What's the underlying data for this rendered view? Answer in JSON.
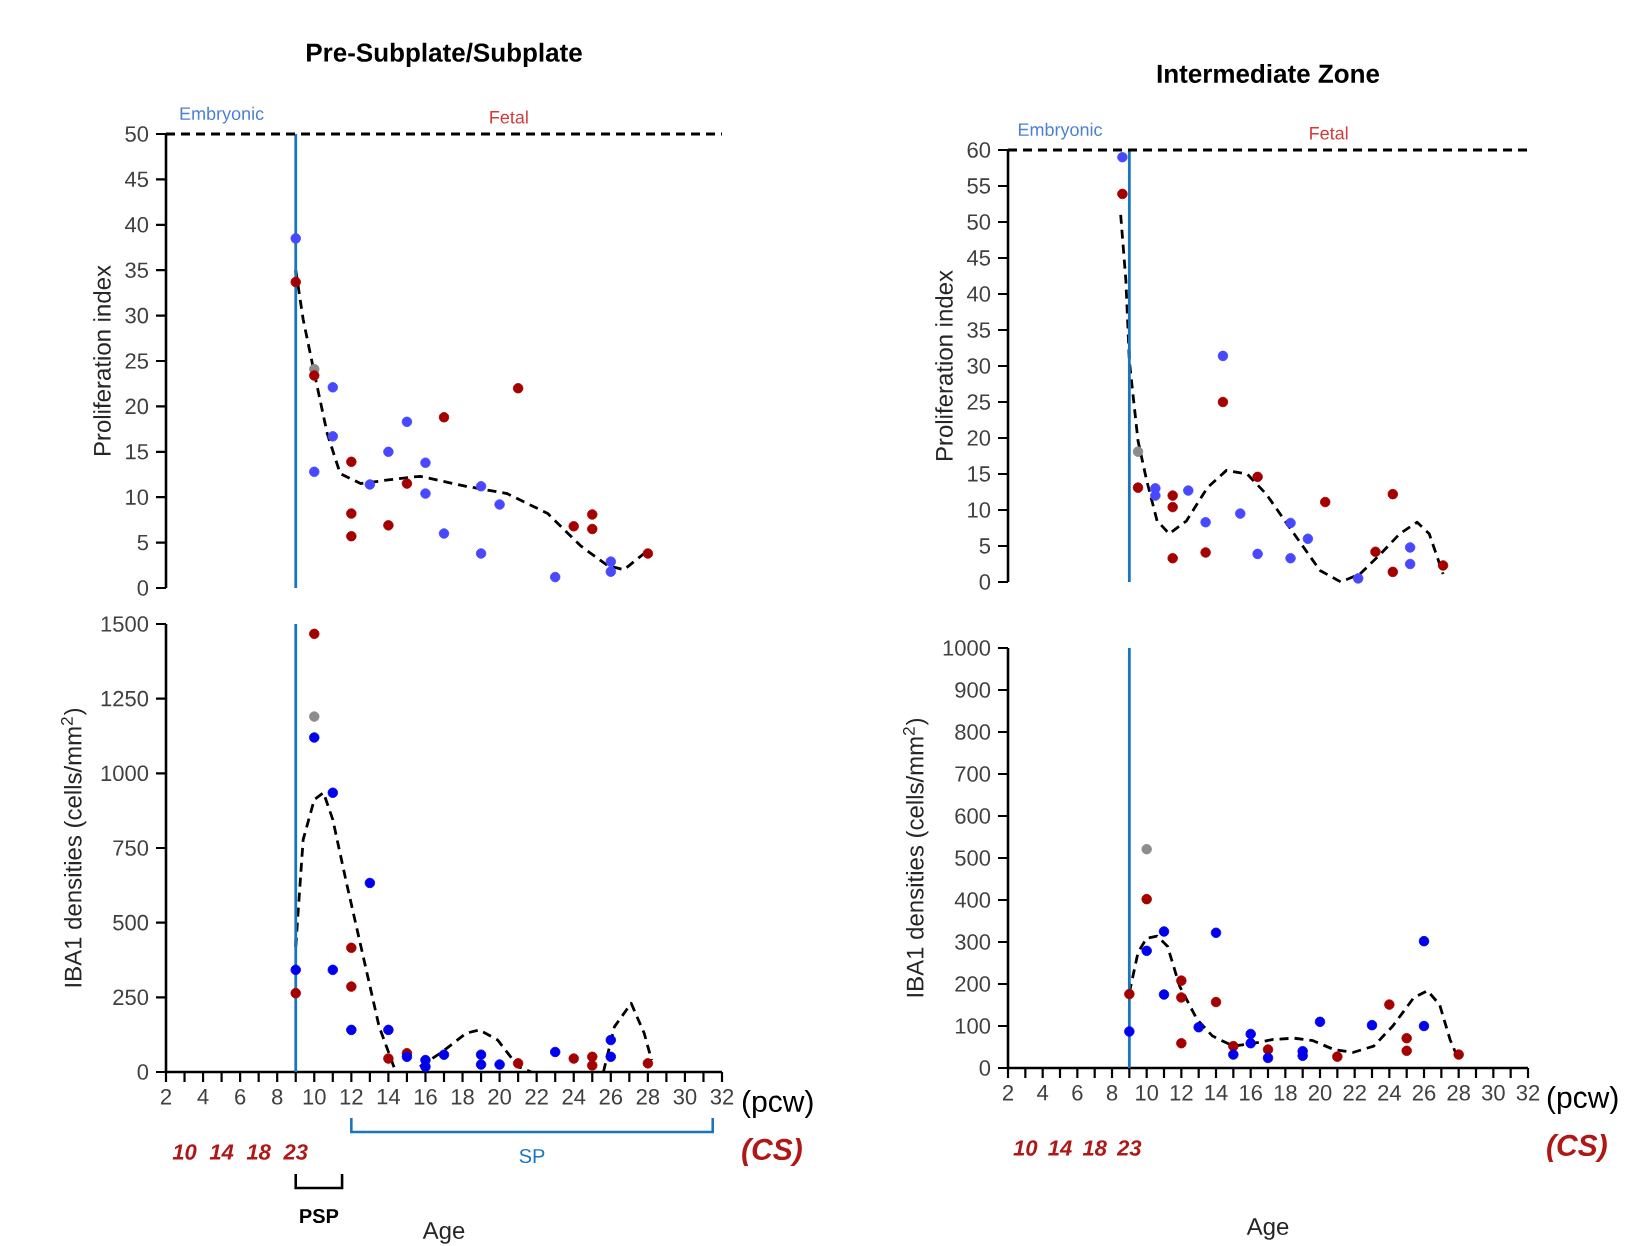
{
  "chart_data": [
    {
      "type": "scatter",
      "title": "Pre-Subplate/Subplate",
      "ylabel": "Proliferation index",
      "xlim": [
        2,
        32
      ],
      "ylim": [
        0,
        50
      ],
      "yticks": [
        0,
        5,
        10,
        15,
        20,
        25,
        30,
        35,
        40,
        45,
        50
      ],
      "tick_labels": "y",
      "marker": "circle",
      "ref_lines": [
        {
          "axis": "x",
          "value": 9,
          "color": "#1a75c0"
        },
        {
          "axis": "y",
          "value": 50,
          "color": "#000000",
          "line_style": "dashed"
        }
      ],
      "annotations": [
        "Embryonic",
        "Fetal"
      ],
      "series": [
        {
          "color": "#8c8c8c",
          "x": [
            10
          ],
          "values": [
            24.1
          ]
        },
        {
          "color": "#a50000",
          "x": [
            9,
            10,
            12,
            12,
            12,
            14,
            15,
            17,
            21,
            24,
            25,
            25,
            28
          ],
          "values": [
            33.7,
            23.4,
            13.9,
            8.2,
            5.7,
            6.9,
            11.5,
            18.8,
            22.0,
            6.8,
            8.1,
            6.5,
            3.8
          ]
        },
        {
          "color": "#4848ff",
          "x": [
            9,
            10,
            11,
            11,
            13,
            14,
            15,
            16,
            16,
            17,
            19,
            19,
            20,
            23,
            26,
            26
          ],
          "values": [
            38.5,
            12.8,
            22.1,
            16.7,
            11.4,
            15,
            18.3,
            13.8,
            10.4,
            6.0,
            11.2,
            3.8,
            9.2,
            1.2,
            2.9,
            1.8
          ]
        },
        {
          "type": "line",
          "color": "#000000",
          "marker": "none",
          "line_style": "dashed",
          "x": [
            9,
            9.4,
            10,
            10.7,
            11.4,
            12.5,
            14,
            15.7,
            18.2,
            20.4,
            22.6,
            24.4,
            25.8,
            26.7,
            27.8
          ],
          "values": [
            35,
            29.6,
            23.7,
            17,
            12.6,
            11.5,
            11.9,
            12.3,
            11.2,
            10.4,
            8.2,
            4.6,
            2.5,
            2.0,
            3.8
          ]
        }
      ]
    },
    {
      "type": "scatter",
      "xlabel": "Age",
      "ylabel": "IBA1 densities (cells/mm$^{2}$)",
      "xlim": [
        2,
        32
      ],
      "ylim": [
        0,
        1500
      ],
      "yticks": [
        0,
        250,
        500,
        750,
        1000,
        1250,
        1500
      ],
      "marker": "circle",
      "xticks": [
        2,
        {
          "value": 3,
          "label": null
        },
        4,
        {
          "value": 5,
          "label": null
        },
        6,
        {
          "value": 7,
          "label": null
        },
        8,
        {
          "value": 9,
          "label": null
        },
        10,
        {
          "value": 11,
          "label": null
        },
        12,
        {
          "value": 13,
          "label": null
        },
        14,
        {
          "value": 15,
          "label": null
        },
        16,
        {
          "value": 17,
          "label": null
        },
        18,
        {
          "value": 19,
          "label": null
        },
        20,
        {
          "value": 21,
          "label": null
        },
        22,
        {
          "value": 23,
          "label": null
        },
        24,
        {
          "value": 25,
          "label": null
        },
        26,
        {
          "value": 27,
          "label": null
        },
        28,
        {
          "value": 29,
          "label": null
        },
        30,
        {
          "value": 31,
          "label": null
        },
        32
      ],
      "ref_lines": [
        {
          "axis": "x",
          "value": 9,
          "color": "#1a75c0"
        }
      ],
      "annotations": [
        "10",
        "14",
        "18",
        "23",
        "(pcw)",
        "(CS)",
        "PSP",
        "SP"
      ],
      "series": [
        {
          "color": "#8c8c8c",
          "x": [
            10
          ],
          "values": [
            1190
          ]
        },
        {
          "color": "#a50000",
          "x": [
            9,
            10,
            12,
            12,
            14,
            15,
            21,
            24,
            25,
            25,
            28
          ],
          "values": [
            264,
            1467,
            416,
            286,
            45,
            63,
            29,
            45,
            51,
            22,
            29
          ]
        },
        {
          "color": "#0000ee",
          "x": [
            9,
            10,
            11,
            11,
            12,
            13,
            14,
            15,
            16,
            16,
            17,
            19,
            19,
            20,
            23,
            26,
            26
          ],
          "values": [
            342,
            1120,
            935,
            342,
            141,
            633,
            141,
            51,
            40,
            18,
            58,
            58,
            25,
            25,
            67,
            107,
            51
          ]
        },
        {
          "type": "line",
          "color": "#000000",
          "marker": "none",
          "line_style": "dashed",
          "x": [
            9,
            9.4,
            10,
            10.5,
            11,
            11.7,
            12.6,
            13.5,
            14.4,
            15.0,
            15.7,
            16.8,
            18.2,
            18.9,
            19.9,
            21,
            21.7,
            23.5,
            25.6,
            26.2,
            27.1,
            27.8,
            28.2
          ],
          "values": [
            420,
            778,
            912,
            935,
            845,
            644,
            398,
            152,
            0,
            null,
            18,
            63,
            130,
            141,
            107,
            18,
            0,
            null,
            0,
            152,
            230,
            130,
            40
          ]
        }
      ]
    },
    {
      "type": "scatter",
      "title": "Intermediate Zone",
      "ylabel": "Proliferation index",
      "xlim": [
        2,
        32
      ],
      "ylim": [
        0,
        60
      ],
      "yticks": [
        0,
        5,
        10,
        15,
        20,
        25,
        30,
        35,
        40,
        45,
        50,
        55,
        60
      ],
      "tick_labels": "y",
      "marker": "circle",
      "ref_lines": [
        {
          "axis": "x",
          "value": 9,
          "color": "#1a75c0"
        },
        {
          "axis": "y",
          "value": 60,
          "color": "#000000",
          "line_style": "dashed"
        }
      ],
      "annotations": [
        "Embryonic",
        "Fetal"
      ],
      "series": [
        {
          "color": "#8c8c8c",
          "x": [
            9.5
          ],
          "values": [
            18.1
          ]
        },
        {
          "color": "#a50000",
          "x": [
            8.6,
            9.5,
            11.5,
            11.5,
            11.5,
            13.4,
            14.4,
            16.4,
            20.3,
            23.2,
            24.2,
            24.2,
            27.1
          ],
          "values": [
            53.9,
            13.1,
            12.0,
            10.4,
            3.3,
            4.1,
            25,
            14.6,
            11.1,
            4.2,
            12.2,
            1.4,
            2.3
          ]
        },
        {
          "color": "#4848ff",
          "x": [
            8.6,
            10.5,
            10.5,
            12.4,
            13.4,
            14.4,
            15.4,
            16.4,
            18.3,
            18.3,
            19.3,
            22.2,
            25.2,
            25.2
          ],
          "values": [
            59.0,
            13.0,
            12.0,
            12.7,
            8.3,
            31.4,
            9.5,
            3.9,
            8.2,
            3.3,
            6.0,
            0.5,
            4.8,
            2.5
          ]
        },
        {
          "type": "line",
          "color": "#000000",
          "marker": "none",
          "line_style": "dashed",
          "x": [
            8.5,
            8.8,
            9.0,
            9.5,
            10,
            10.6,
            11.3,
            12.3,
            13.5,
            14.6,
            15.8,
            16.9,
            18.5,
            20,
            21.2,
            22.3,
            23.5,
            24.6,
            25.6,
            26.3,
            27.1
          ],
          "values": [
            51,
            41.9,
            30.7,
            19.6,
            14.1,
            8.5,
            6.7,
            8.5,
            13.1,
            15.5,
            15,
            12.2,
            6.7,
            1.6,
            0,
            1.1,
            3.9,
            6.7,
            8.3,
            6.7,
            1.1
          ]
        }
      ]
    },
    {
      "type": "scatter",
      "xlabel": "Age",
      "ylabel": "IBA1 densities (cells/mm$^{2}$)",
      "xlim": [
        2,
        32
      ],
      "ylim": [
        0,
        1000
      ],
      "yticks": [
        0,
        100,
        200,
        300,
        400,
        500,
        600,
        700,
        800,
        900,
        1000
      ],
      "marker": "circle",
      "xticks": [
        2,
        {
          "value": 3,
          "label": null
        },
        4,
        {
          "value": 5,
          "label": null
        },
        6,
        {
          "value": 7,
          "label": null
        },
        8,
        {
          "value": 9,
          "label": null
        },
        10,
        {
          "value": 11,
          "label": null
        },
        12,
        {
          "value": 13,
          "label": null
        },
        14,
        {
          "value": 15,
          "label": null
        },
        16,
        {
          "value": 17,
          "label": null
        },
        18,
        {
          "value": 19,
          "label": null
        },
        20,
        {
          "value": 21,
          "label": null
        },
        22,
        {
          "value": 23,
          "label": null
        },
        24,
        {
          "value": 25,
          "label": null
        },
        26,
        {
          "value": 27,
          "label": null
        },
        28,
        {
          "value": 29,
          "label": null
        },
        30,
        {
          "value": 31,
          "label": null
        },
        32
      ],
      "ref_lines": [
        {
          "axis": "x",
          "value": 9,
          "color": "#1a75c0"
        }
      ],
      "annotations": [
        "10",
        "14",
        "18",
        "23",
        "(pcw)",
        "(CS)"
      ],
      "series": [
        {
          "color": "#8c8c8c",
          "x": [
            10
          ],
          "values": [
            521
          ]
        },
        {
          "color": "#a50000",
          "x": [
            9,
            10,
            12,
            12,
            12,
            14,
            15,
            17,
            21,
            24,
            25,
            25,
            28
          ],
          "values": [
            176,
            402,
            208,
            168,
            59,
            157,
            52,
            44,
            27,
            151,
            71,
            41,
            32
          ]
        },
        {
          "color": "#0000ee",
          "x": [
            9,
            10,
            11,
            11,
            13,
            14,
            15,
            16,
            16,
            17,
            19,
            19,
            20,
            23,
            26,
            26
          ],
          "values": [
            87,
            279,
            325,
            175,
            97,
            322,
            32,
            81,
            59,
            24,
            40,
            29,
            110,
            102,
            302,
            100
          ]
        },
        {
          "type": "line",
          "color": "#000000",
          "marker": "none",
          "line_style": "dashed",
          "x": [
            9,
            9.5,
            10,
            10.6,
            11.2,
            11.9,
            12.9,
            13.8,
            15,
            16.2,
            17.3,
            18.5,
            19.6,
            20.8,
            21.9,
            23.1,
            24.2,
            25.4,
            26.2,
            26.9,
            27.5,
            27.9
          ],
          "values": [
            179,
            275,
            309,
            314,
            290,
            195,
            116,
            76,
            52,
            59,
            68,
            71,
            65,
            44,
            37,
            52,
            100,
            167,
            184,
            151,
            68,
            29
          ]
        }
      ]
    }
  ]
}
